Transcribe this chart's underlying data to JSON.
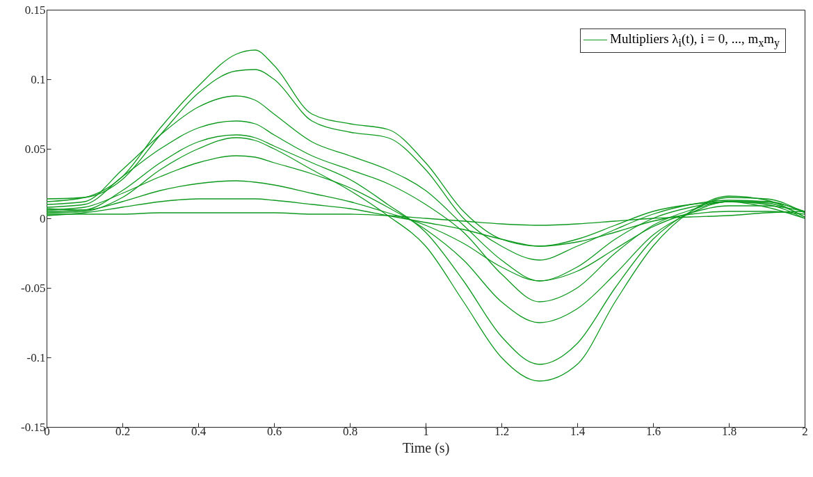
{
  "chart_data": {
    "type": "line",
    "xlabel": "Time (s)",
    "legend": "top right",
    "grid": false,
    "line_style": "solid",
    "marker": "none",
    "x": [
      0,
      0.1,
      0.2,
      0.3,
      0.4,
      0.5,
      0.55,
      0.6,
      0.7,
      0.8,
      0.9,
      1.0,
      1.1,
      1.2,
      1.3,
      1.4,
      1.5,
      1.6,
      1.7,
      1.8,
      1.9,
      2.0
    ],
    "xlim": [
      0,
      2
    ],
    "xticks": [
      0,
      0.2,
      0.4,
      0.6,
      0.8,
      1,
      1.2,
      1.4,
      1.6,
      1.8,
      2
    ],
    "ylim": [
      -0.15,
      0.15
    ],
    "yticks": [
      -0.15,
      -0.1,
      -0.05,
      0,
      0.05,
      0.1,
      0.15
    ],
    "series": [
      {
        "name": "Multipliers λ$_{i}$(t), i = 0, ..., m$_{x}$m$_{y}$",
        "color": "#0e9a1e",
        "values": [
          0.012,
          0.015,
          0.03,
          0.065,
          0.095,
          0.118,
          0.121,
          0.11,
          0.075,
          0.068,
          0.064,
          0.04,
          0.005,
          -0.015,
          -0.02,
          -0.015,
          -0.005,
          0.005,
          0.01,
          0.012,
          0.008,
          0.0
        ]
      },
      {
        "color": "#0e9a1e",
        "values": [
          0.014,
          0.015,
          0.028,
          0.06,
          0.09,
          0.106,
          0.107,
          0.1,
          0.07,
          0.062,
          0.058,
          0.035,
          0.0,
          -0.02,
          -0.03,
          -0.02,
          -0.008,
          0.003,
          0.01,
          0.013,
          0.012,
          0.005
        ]
      },
      {
        "color": "#0e9a1e",
        "values": [
          0.01,
          0.012,
          0.035,
          0.06,
          0.08,
          0.088,
          0.085,
          0.075,
          0.055,
          0.045,
          0.035,
          0.02,
          -0.005,
          -0.03,
          -0.045,
          -0.035,
          -0.015,
          0.0,
          0.008,
          0.012,
          0.012,
          0.004
        ]
      },
      {
        "color": "#0e9a1e",
        "values": [
          0.008,
          0.01,
          0.03,
          0.05,
          0.065,
          0.07,
          0.068,
          0.06,
          0.045,
          0.035,
          0.025,
          0.01,
          -0.01,
          -0.04,
          -0.06,
          -0.05,
          -0.025,
          -0.005,
          0.006,
          0.012,
          0.011,
          0.001
        ]
      },
      {
        "color": "#0e9a1e",
        "values": [
          0.005,
          0.006,
          0.02,
          0.04,
          0.055,
          0.06,
          0.058,
          0.052,
          0.04,
          0.028,
          0.01,
          -0.01,
          -0.045,
          -0.085,
          -0.105,
          -0.09,
          -0.05,
          -0.015,
          0.005,
          0.015,
          0.014,
          0.004
        ]
      },
      {
        "color": "#0e9a1e",
        "values": [
          0.004,
          0.005,
          0.015,
          0.035,
          0.05,
          0.058,
          0.056,
          0.05,
          0.035,
          0.02,
          0.002,
          -0.02,
          -0.06,
          -0.1,
          -0.117,
          -0.105,
          -0.06,
          -0.02,
          0.005,
          0.016,
          0.013,
          0.001
        ]
      },
      {
        "color": "#0e9a1e",
        "values": [
          0.006,
          0.008,
          0.018,
          0.03,
          0.04,
          0.045,
          0.044,
          0.04,
          0.032,
          0.022,
          0.008,
          -0.008,
          -0.03,
          -0.06,
          -0.075,
          -0.065,
          -0.04,
          -0.012,
          0.004,
          0.012,
          0.01,
          0.0
        ]
      },
      {
        "color": "#0e9a1e",
        "values": [
          0.007,
          0.006,
          0.012,
          0.02,
          0.025,
          0.027,
          0.026,
          0.024,
          0.018,
          0.012,
          0.004,
          -0.005,
          -0.018,
          -0.035,
          -0.045,
          -0.038,
          -0.022,
          -0.006,
          0.004,
          0.009,
          0.009,
          0.005
        ]
      },
      {
        "color": "#0e9a1e",
        "values": [
          0.002,
          0.004,
          0.008,
          0.012,
          0.014,
          0.014,
          0.014,
          0.013,
          0.01,
          0.007,
          0.002,
          -0.003,
          -0.008,
          -0.015,
          -0.02,
          -0.017,
          -0.01,
          -0.002,
          0.003,
          0.005,
          0.005,
          0.003
        ]
      },
      {
        "color": "#0e9a1e",
        "values": [
          0.003,
          0.003,
          0.003,
          0.004,
          0.004,
          0.004,
          0.004,
          0.004,
          0.003,
          0.003,
          0.002,
          0.0,
          -0.002,
          -0.004,
          -0.005,
          -0.004,
          -0.002,
          0.0,
          0.001,
          0.002,
          0.004,
          0.005
        ]
      }
    ]
  }
}
